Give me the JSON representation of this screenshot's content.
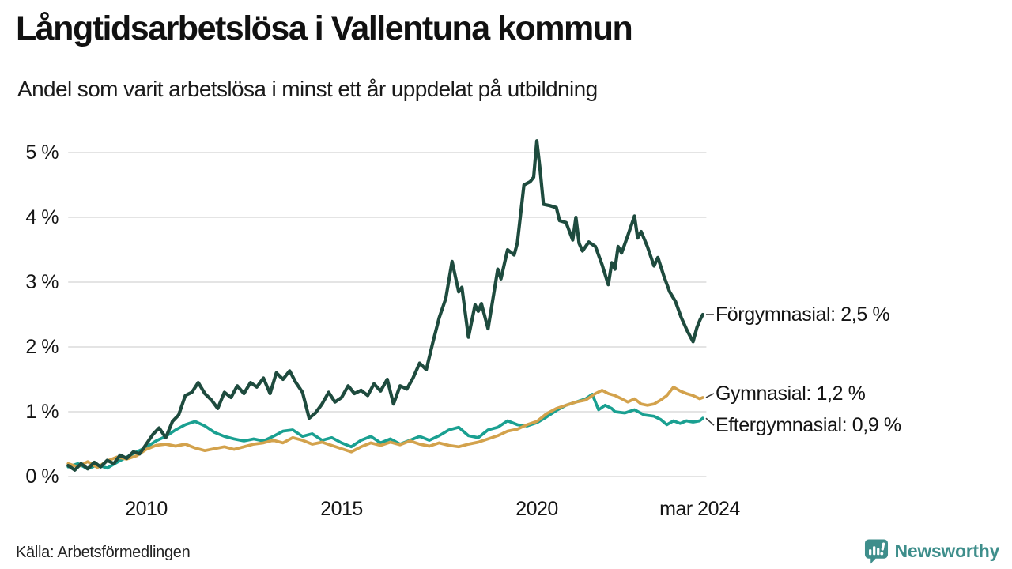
{
  "header": {
    "title": "Långtidsarbetslösa i Vallentuna kommun",
    "subtitle": "Andel som varit arbetslösa i minst ett år uppdelat på utbildning"
  },
  "footer": {
    "source": "Källa: Arbetsförmedlingen",
    "brand": "Newsworthy"
  },
  "colors": {
    "text": "#141414",
    "grid": "#e4e4e4",
    "connector": "#3a3a3a",
    "brand_teal": "#3e8e8b",
    "forgymnasial": "#1e4b3e",
    "gymnasial": "#d3a24c",
    "eftergymnasial": "#1aa091"
  },
  "chart_data": {
    "type": "line",
    "title": "Långtidsarbetslösa i Vallentuna kommun",
    "subtitle": "Andel som varit arbetslösa i minst ett år uppdelat på utbildning",
    "xlabel": "",
    "ylabel": "",
    "x_range": [
      2008,
      2024.3
    ],
    "ylim": [
      0,
      5.3
    ],
    "grid": true,
    "legend_position": "right-end-labels",
    "y_ticks": [
      {
        "value": 0,
        "label": "0 %"
      },
      {
        "value": 1,
        "label": "1 %"
      },
      {
        "value": 2,
        "label": "2 %"
      },
      {
        "value": 3,
        "label": "3 %"
      },
      {
        "value": 4,
        "label": "4 %"
      },
      {
        "value": 5,
        "label": "5 %"
      }
    ],
    "x_ticks": [
      {
        "year": 2010,
        "label": "2010"
      },
      {
        "year": 2015,
        "label": "2015"
      },
      {
        "year": 2020,
        "label": "2020"
      },
      {
        "year": 2024.17,
        "label": "mar 2024"
      }
    ],
    "series": [
      {
        "id": "eftergymnasial",
        "name": "Eftergymnasial",
        "end_label": "Eftergymnasial: 0,9 %",
        "end_value": "0,9 %",
        "color": "#1aa091",
        "line_width": 3.7,
        "label_dy": 9,
        "points": [
          [
            2008.0,
            0.15
          ],
          [
            2008.25,
            0.2
          ],
          [
            2008.5,
            0.12
          ],
          [
            2008.75,
            0.18
          ],
          [
            2009.0,
            0.13
          ],
          [
            2009.25,
            0.22
          ],
          [
            2009.5,
            0.3
          ],
          [
            2009.75,
            0.38
          ],
          [
            2010.0,
            0.45
          ],
          [
            2010.25,
            0.55
          ],
          [
            2010.5,
            0.62
          ],
          [
            2010.75,
            0.72
          ],
          [
            2011.0,
            0.8
          ],
          [
            2011.25,
            0.85
          ],
          [
            2011.5,
            0.78
          ],
          [
            2011.75,
            0.68
          ],
          [
            2012.0,
            0.62
          ],
          [
            2012.25,
            0.58
          ],
          [
            2012.5,
            0.55
          ],
          [
            2012.75,
            0.58
          ],
          [
            2013.0,
            0.55
          ],
          [
            2013.25,
            0.62
          ],
          [
            2013.5,
            0.7
          ],
          [
            2013.75,
            0.72
          ],
          [
            2014.0,
            0.62
          ],
          [
            2014.25,
            0.66
          ],
          [
            2014.5,
            0.56
          ],
          [
            2014.75,
            0.6
          ],
          [
            2015.0,
            0.52
          ],
          [
            2015.25,
            0.46
          ],
          [
            2015.5,
            0.56
          ],
          [
            2015.75,
            0.62
          ],
          [
            2016.0,
            0.52
          ],
          [
            2016.25,
            0.58
          ],
          [
            2016.5,
            0.5
          ],
          [
            2016.75,
            0.56
          ],
          [
            2017.0,
            0.62
          ],
          [
            2017.25,
            0.56
          ],
          [
            2017.5,
            0.63
          ],
          [
            2017.75,
            0.72
          ],
          [
            2018.0,
            0.76
          ],
          [
            2018.25,
            0.63
          ],
          [
            2018.5,
            0.6
          ],
          [
            2018.75,
            0.72
          ],
          [
            2019.0,
            0.76
          ],
          [
            2019.25,
            0.86
          ],
          [
            2019.5,
            0.8
          ],
          [
            2019.75,
            0.78
          ],
          [
            2020.0,
            0.83
          ],
          [
            2020.25,
            0.92
          ],
          [
            2020.5,
            1.02
          ],
          [
            2020.75,
            1.1
          ],
          [
            2021.0,
            1.15
          ],
          [
            2021.25,
            1.2
          ],
          [
            2021.42,
            1.27
          ],
          [
            2021.58,
            1.03
          ],
          [
            2021.75,
            1.1
          ],
          [
            2021.92,
            1.05
          ],
          [
            2022.0,
            1.0
          ],
          [
            2022.25,
            0.98
          ],
          [
            2022.5,
            1.03
          ],
          [
            2022.75,
            0.95
          ],
          [
            2023.0,
            0.93
          ],
          [
            2023.17,
            0.88
          ],
          [
            2023.33,
            0.8
          ],
          [
            2023.5,
            0.86
          ],
          [
            2023.67,
            0.82
          ],
          [
            2023.83,
            0.86
          ],
          [
            2024.0,
            0.84
          ],
          [
            2024.17,
            0.86
          ],
          [
            2024.25,
            0.9
          ]
        ]
      },
      {
        "id": "gymnasial",
        "name": "Gymnasial",
        "end_label": "Gymnasial: 1,2 %",
        "end_value": "1,2 %",
        "color": "#d3a24c",
        "line_width": 3.7,
        "label_dy": -5,
        "points": [
          [
            2008.0,
            0.2
          ],
          [
            2008.25,
            0.15
          ],
          [
            2008.5,
            0.23
          ],
          [
            2008.75,
            0.14
          ],
          [
            2009.0,
            0.24
          ],
          [
            2009.25,
            0.3
          ],
          [
            2009.5,
            0.27
          ],
          [
            2009.75,
            0.32
          ],
          [
            2010.0,
            0.42
          ],
          [
            2010.25,
            0.48
          ],
          [
            2010.5,
            0.5
          ],
          [
            2010.75,
            0.47
          ],
          [
            2011.0,
            0.5
          ],
          [
            2011.25,
            0.44
          ],
          [
            2011.5,
            0.4
          ],
          [
            2011.75,
            0.43
          ],
          [
            2012.0,
            0.46
          ],
          [
            2012.25,
            0.42
          ],
          [
            2012.5,
            0.46
          ],
          [
            2012.75,
            0.5
          ],
          [
            2013.0,
            0.52
          ],
          [
            2013.25,
            0.56
          ],
          [
            2013.5,
            0.52
          ],
          [
            2013.75,
            0.6
          ],
          [
            2014.0,
            0.56
          ],
          [
            2014.25,
            0.5
          ],
          [
            2014.5,
            0.53
          ],
          [
            2014.75,
            0.48
          ],
          [
            2015.0,
            0.43
          ],
          [
            2015.25,
            0.38
          ],
          [
            2015.5,
            0.46
          ],
          [
            2015.75,
            0.52
          ],
          [
            2016.0,
            0.48
          ],
          [
            2016.25,
            0.53
          ],
          [
            2016.5,
            0.49
          ],
          [
            2016.75,
            0.55
          ],
          [
            2017.0,
            0.5
          ],
          [
            2017.25,
            0.47
          ],
          [
            2017.5,
            0.52
          ],
          [
            2017.75,
            0.48
          ],
          [
            2018.0,
            0.46
          ],
          [
            2018.25,
            0.5
          ],
          [
            2018.5,
            0.53
          ],
          [
            2018.75,
            0.58
          ],
          [
            2019.0,
            0.63
          ],
          [
            2019.25,
            0.7
          ],
          [
            2019.5,
            0.73
          ],
          [
            2019.75,
            0.8
          ],
          [
            2020.0,
            0.85
          ],
          [
            2020.25,
            0.97
          ],
          [
            2020.5,
            1.05
          ],
          [
            2020.75,
            1.1
          ],
          [
            2021.0,
            1.15
          ],
          [
            2021.25,
            1.18
          ],
          [
            2021.5,
            1.28
          ],
          [
            2021.67,
            1.33
          ],
          [
            2021.83,
            1.28
          ],
          [
            2022.0,
            1.25
          ],
          [
            2022.17,
            1.2
          ],
          [
            2022.33,
            1.15
          ],
          [
            2022.5,
            1.2
          ],
          [
            2022.67,
            1.12
          ],
          [
            2022.83,
            1.1
          ],
          [
            2023.0,
            1.12
          ],
          [
            2023.17,
            1.18
          ],
          [
            2023.33,
            1.25
          ],
          [
            2023.5,
            1.38
          ],
          [
            2023.67,
            1.32
          ],
          [
            2023.83,
            1.28
          ],
          [
            2024.0,
            1.25
          ],
          [
            2024.17,
            1.2
          ],
          [
            2024.25,
            1.22
          ]
        ]
      },
      {
        "id": "forgymnasial",
        "name": "Förgymnasial",
        "end_label": "Förgymnasial: 2,5 %",
        "end_value": "2,5 %",
        "color": "#1e4b3e",
        "line_width": 4.2,
        "label_dy": 0,
        "points": [
          [
            2008.0,
            0.17
          ],
          [
            2008.17,
            0.1
          ],
          [
            2008.33,
            0.2
          ],
          [
            2008.5,
            0.12
          ],
          [
            2008.67,
            0.22
          ],
          [
            2008.83,
            0.15
          ],
          [
            2009.0,
            0.25
          ],
          [
            2009.17,
            0.2
          ],
          [
            2009.33,
            0.33
          ],
          [
            2009.5,
            0.28
          ],
          [
            2009.67,
            0.38
          ],
          [
            2009.83,
            0.35
          ],
          [
            2010.0,
            0.5
          ],
          [
            2010.17,
            0.65
          ],
          [
            2010.33,
            0.75
          ],
          [
            2010.5,
            0.6
          ],
          [
            2010.67,
            0.85
          ],
          [
            2010.83,
            0.95
          ],
          [
            2011.0,
            1.25
          ],
          [
            2011.17,
            1.3
          ],
          [
            2011.33,
            1.45
          ],
          [
            2011.5,
            1.28
          ],
          [
            2011.67,
            1.18
          ],
          [
            2011.83,
            1.05
          ],
          [
            2012.0,
            1.3
          ],
          [
            2012.17,
            1.22
          ],
          [
            2012.33,
            1.4
          ],
          [
            2012.5,
            1.28
          ],
          [
            2012.67,
            1.45
          ],
          [
            2012.83,
            1.38
          ],
          [
            2013.0,
            1.52
          ],
          [
            2013.17,
            1.28
          ],
          [
            2013.33,
            1.6
          ],
          [
            2013.5,
            1.5
          ],
          [
            2013.67,
            1.63
          ],
          [
            2013.83,
            1.45
          ],
          [
            2014.0,
            1.3
          ],
          [
            2014.17,
            0.9
          ],
          [
            2014.33,
            0.98
          ],
          [
            2014.5,
            1.12
          ],
          [
            2014.67,
            1.3
          ],
          [
            2014.83,
            1.15
          ],
          [
            2015.0,
            1.22
          ],
          [
            2015.17,
            1.4
          ],
          [
            2015.33,
            1.28
          ],
          [
            2015.5,
            1.33
          ],
          [
            2015.67,
            1.25
          ],
          [
            2015.83,
            1.43
          ],
          [
            2016.0,
            1.32
          ],
          [
            2016.17,
            1.5
          ],
          [
            2016.33,
            1.12
          ],
          [
            2016.5,
            1.4
          ],
          [
            2016.67,
            1.35
          ],
          [
            2016.83,
            1.52
          ],
          [
            2017.0,
            1.75
          ],
          [
            2017.17,
            1.65
          ],
          [
            2017.33,
            2.05
          ],
          [
            2017.5,
            2.45
          ],
          [
            2017.67,
            2.75
          ],
          [
            2017.83,
            3.32
          ],
          [
            2018.0,
            2.85
          ],
          [
            2018.08,
            2.92
          ],
          [
            2018.25,
            2.15
          ],
          [
            2018.42,
            2.65
          ],
          [
            2018.5,
            2.55
          ],
          [
            2018.58,
            2.67
          ],
          [
            2018.75,
            2.28
          ],
          [
            2018.92,
            2.9
          ],
          [
            2019.0,
            3.2
          ],
          [
            2019.08,
            3.05
          ],
          [
            2019.25,
            3.5
          ],
          [
            2019.42,
            3.42
          ],
          [
            2019.5,
            3.6
          ],
          [
            2019.67,
            4.5
          ],
          [
            2019.83,
            4.55
          ],
          [
            2019.92,
            4.62
          ],
          [
            2020.0,
            5.18
          ],
          [
            2020.08,
            4.75
          ],
          [
            2020.17,
            4.2
          ],
          [
            2020.33,
            4.18
          ],
          [
            2020.5,
            4.15
          ],
          [
            2020.58,
            3.95
          ],
          [
            2020.75,
            3.92
          ],
          [
            2020.92,
            3.65
          ],
          [
            2021.0,
            4.0
          ],
          [
            2021.08,
            3.6
          ],
          [
            2021.17,
            3.48
          ],
          [
            2021.33,
            3.62
          ],
          [
            2021.5,
            3.55
          ],
          [
            2021.67,
            3.27
          ],
          [
            2021.83,
            2.96
          ],
          [
            2021.92,
            3.3
          ],
          [
            2022.0,
            3.2
          ],
          [
            2022.08,
            3.55
          ],
          [
            2022.17,
            3.45
          ],
          [
            2022.33,
            3.72
          ],
          [
            2022.5,
            4.02
          ],
          [
            2022.58,
            3.68
          ],
          [
            2022.67,
            3.78
          ],
          [
            2022.83,
            3.55
          ],
          [
            2023.0,
            3.25
          ],
          [
            2023.1,
            3.38
          ],
          [
            2023.25,
            3.1
          ],
          [
            2023.4,
            2.85
          ],
          [
            2023.55,
            2.7
          ],
          [
            2023.7,
            2.45
          ],
          [
            2023.85,
            2.25
          ],
          [
            2024.0,
            2.08
          ],
          [
            2024.1,
            2.3
          ],
          [
            2024.18,
            2.42
          ],
          [
            2024.25,
            2.5
          ]
        ]
      }
    ]
  }
}
